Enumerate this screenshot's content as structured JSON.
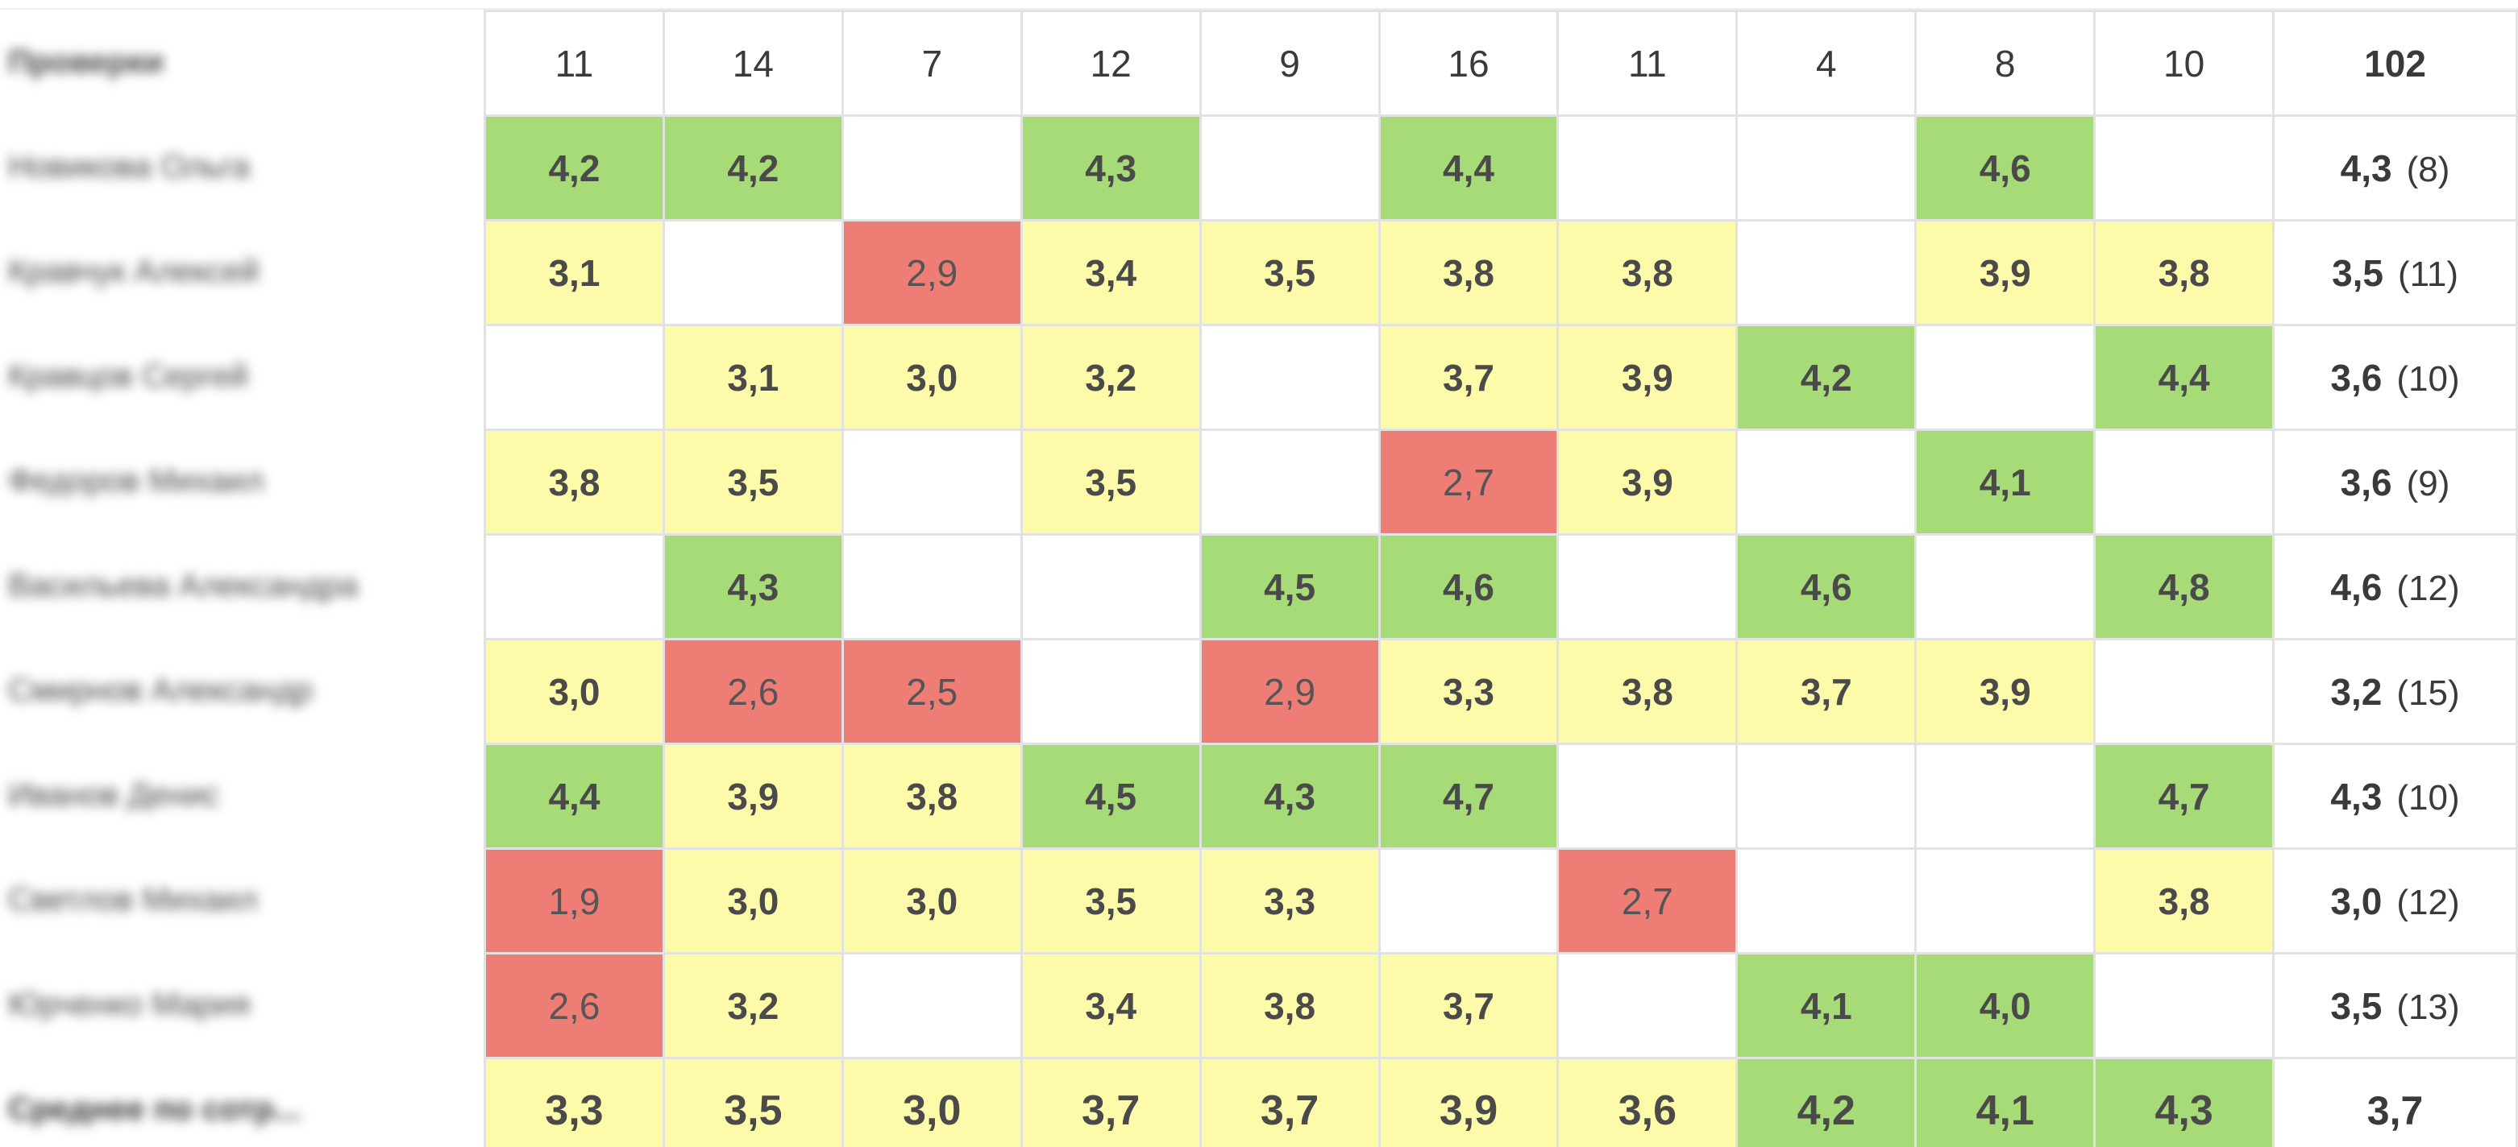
{
  "header": {
    "label": "Проверки",
    "counts": [
      "11",
      "14",
      "7",
      "12",
      "9",
      "16",
      "11",
      "4",
      "8",
      "10"
    ],
    "total": "102"
  },
  "rows": [
    {
      "name": "Новикова Ольга",
      "cells": [
        {
          "v": "4,2",
          "c": "g"
        },
        {
          "v": "4,2",
          "c": "g"
        },
        {
          "v": "",
          "c": "e"
        },
        {
          "v": "4,3",
          "c": "g"
        },
        {
          "v": "",
          "c": "e"
        },
        {
          "v": "4,4",
          "c": "g"
        },
        {
          "v": "",
          "c": "e"
        },
        {
          "v": "",
          "c": "e"
        },
        {
          "v": "4,6",
          "c": "g"
        },
        {
          "v": "",
          "c": "e"
        }
      ],
      "avg": "4,3",
      "count": "(8)"
    },
    {
      "name": "Кравчук Алексей",
      "cells": [
        {
          "v": "3,1",
          "c": "y"
        },
        {
          "v": "",
          "c": "e"
        },
        {
          "v": "2,9",
          "c": "r"
        },
        {
          "v": "3,4",
          "c": "y"
        },
        {
          "v": "3,5",
          "c": "y"
        },
        {
          "v": "3,8",
          "c": "y"
        },
        {
          "v": "3,8",
          "c": "y"
        },
        {
          "v": "",
          "c": "e"
        },
        {
          "v": "3,9",
          "c": "y"
        },
        {
          "v": "3,8",
          "c": "y"
        }
      ],
      "avg": "3,5",
      "count": "(11)"
    },
    {
      "name": "Кравцов Сергей",
      "cells": [
        {
          "v": "",
          "c": "e"
        },
        {
          "v": "3,1",
          "c": "y"
        },
        {
          "v": "3,0",
          "c": "y"
        },
        {
          "v": "3,2",
          "c": "y"
        },
        {
          "v": "",
          "c": "e"
        },
        {
          "v": "3,7",
          "c": "y"
        },
        {
          "v": "3,9",
          "c": "y"
        },
        {
          "v": "4,2",
          "c": "g"
        },
        {
          "v": "",
          "c": "e"
        },
        {
          "v": "4,4",
          "c": "g"
        }
      ],
      "avg": "3,6",
      "count": "(10)"
    },
    {
      "name": "Федоров Михаил",
      "cells": [
        {
          "v": "3,8",
          "c": "y"
        },
        {
          "v": "3,5",
          "c": "y"
        },
        {
          "v": "",
          "c": "e"
        },
        {
          "v": "3,5",
          "c": "y"
        },
        {
          "v": "",
          "c": "e"
        },
        {
          "v": "2,7",
          "c": "r"
        },
        {
          "v": "3,9",
          "c": "y"
        },
        {
          "v": "",
          "c": "e"
        },
        {
          "v": "4,1",
          "c": "g"
        },
        {
          "v": "",
          "c": "e"
        }
      ],
      "avg": "3,6",
      "count": "(9)"
    },
    {
      "name": "Васильева Александра",
      "cells": [
        {
          "v": "",
          "c": "e"
        },
        {
          "v": "4,3",
          "c": "g"
        },
        {
          "v": "",
          "c": "e"
        },
        {
          "v": "",
          "c": "e"
        },
        {
          "v": "4,5",
          "c": "g"
        },
        {
          "v": "4,6",
          "c": "g"
        },
        {
          "v": "",
          "c": "e"
        },
        {
          "v": "4,6",
          "c": "g"
        },
        {
          "v": "",
          "c": "e"
        },
        {
          "v": "4,8",
          "c": "g"
        }
      ],
      "avg": "4,6",
      "count": "(12)"
    },
    {
      "name": "Смирнов Александр",
      "cells": [
        {
          "v": "3,0",
          "c": "y"
        },
        {
          "v": "2,6",
          "c": "r"
        },
        {
          "v": "2,5",
          "c": "r"
        },
        {
          "v": "",
          "c": "e"
        },
        {
          "v": "2,9",
          "c": "r"
        },
        {
          "v": "3,3",
          "c": "y"
        },
        {
          "v": "3,8",
          "c": "y"
        },
        {
          "v": "3,7",
          "c": "y"
        },
        {
          "v": "3,9",
          "c": "y"
        },
        {
          "v": "",
          "c": "e"
        }
      ],
      "avg": "3,2",
      "count": "(15)"
    },
    {
      "name": "Иванов Денис",
      "cells": [
        {
          "v": "4,4",
          "c": "g"
        },
        {
          "v": "3,9",
          "c": "y"
        },
        {
          "v": "3,8",
          "c": "y"
        },
        {
          "v": "4,5",
          "c": "g"
        },
        {
          "v": "4,3",
          "c": "g"
        },
        {
          "v": "4,7",
          "c": "g"
        },
        {
          "v": "",
          "c": "e"
        },
        {
          "v": "",
          "c": "e"
        },
        {
          "v": "",
          "c": "e"
        },
        {
          "v": "4,7",
          "c": "g"
        }
      ],
      "avg": "4,3",
      "count": "(10)"
    },
    {
      "name": "Светлов Михаил",
      "cells": [
        {
          "v": "1,9",
          "c": "r"
        },
        {
          "v": "3,0",
          "c": "y"
        },
        {
          "v": "3,0",
          "c": "y"
        },
        {
          "v": "3,5",
          "c": "y"
        },
        {
          "v": "3,3",
          "c": "y"
        },
        {
          "v": "",
          "c": "e"
        },
        {
          "v": "2,7",
          "c": "r"
        },
        {
          "v": "",
          "c": "e"
        },
        {
          "v": "",
          "c": "e"
        },
        {
          "v": "3,8",
          "c": "y"
        }
      ],
      "avg": "3,0",
      "count": "(12)"
    },
    {
      "name": "Юрченко Мария",
      "cells": [
        {
          "v": "2,6",
          "c": "r"
        },
        {
          "v": "3,2",
          "c": "y"
        },
        {
          "v": "",
          "c": "e"
        },
        {
          "v": "3,4",
          "c": "y"
        },
        {
          "v": "3,8",
          "c": "y"
        },
        {
          "v": "3,7",
          "c": "y"
        },
        {
          "v": "",
          "c": "e"
        },
        {
          "v": "4,1",
          "c": "g"
        },
        {
          "v": "4,0",
          "c": "g"
        },
        {
          "v": "",
          "c": "e"
        }
      ],
      "avg": "3,5",
      "count": "(13)"
    }
  ],
  "average_row": {
    "name": "Среднее по сотр...",
    "cells": [
      {
        "v": "3,3",
        "c": "y"
      },
      {
        "v": "3,5",
        "c": "y"
      },
      {
        "v": "3,0",
        "c": "y"
      },
      {
        "v": "3,7",
        "c": "y"
      },
      {
        "v": "3,7",
        "c": "y"
      },
      {
        "v": "3,9",
        "c": "y"
      },
      {
        "v": "3,6",
        "c": "y"
      },
      {
        "v": "4,2",
        "c": "g"
      },
      {
        "v": "4,1",
        "c": "g"
      },
      {
        "v": "4,3",
        "c": "g"
      }
    ],
    "avg": "3,7"
  },
  "colors": {
    "good": "#a6db77",
    "medium": "#fdfaaa",
    "bad": "#ee7d75",
    "empty": "#ffffff"
  }
}
